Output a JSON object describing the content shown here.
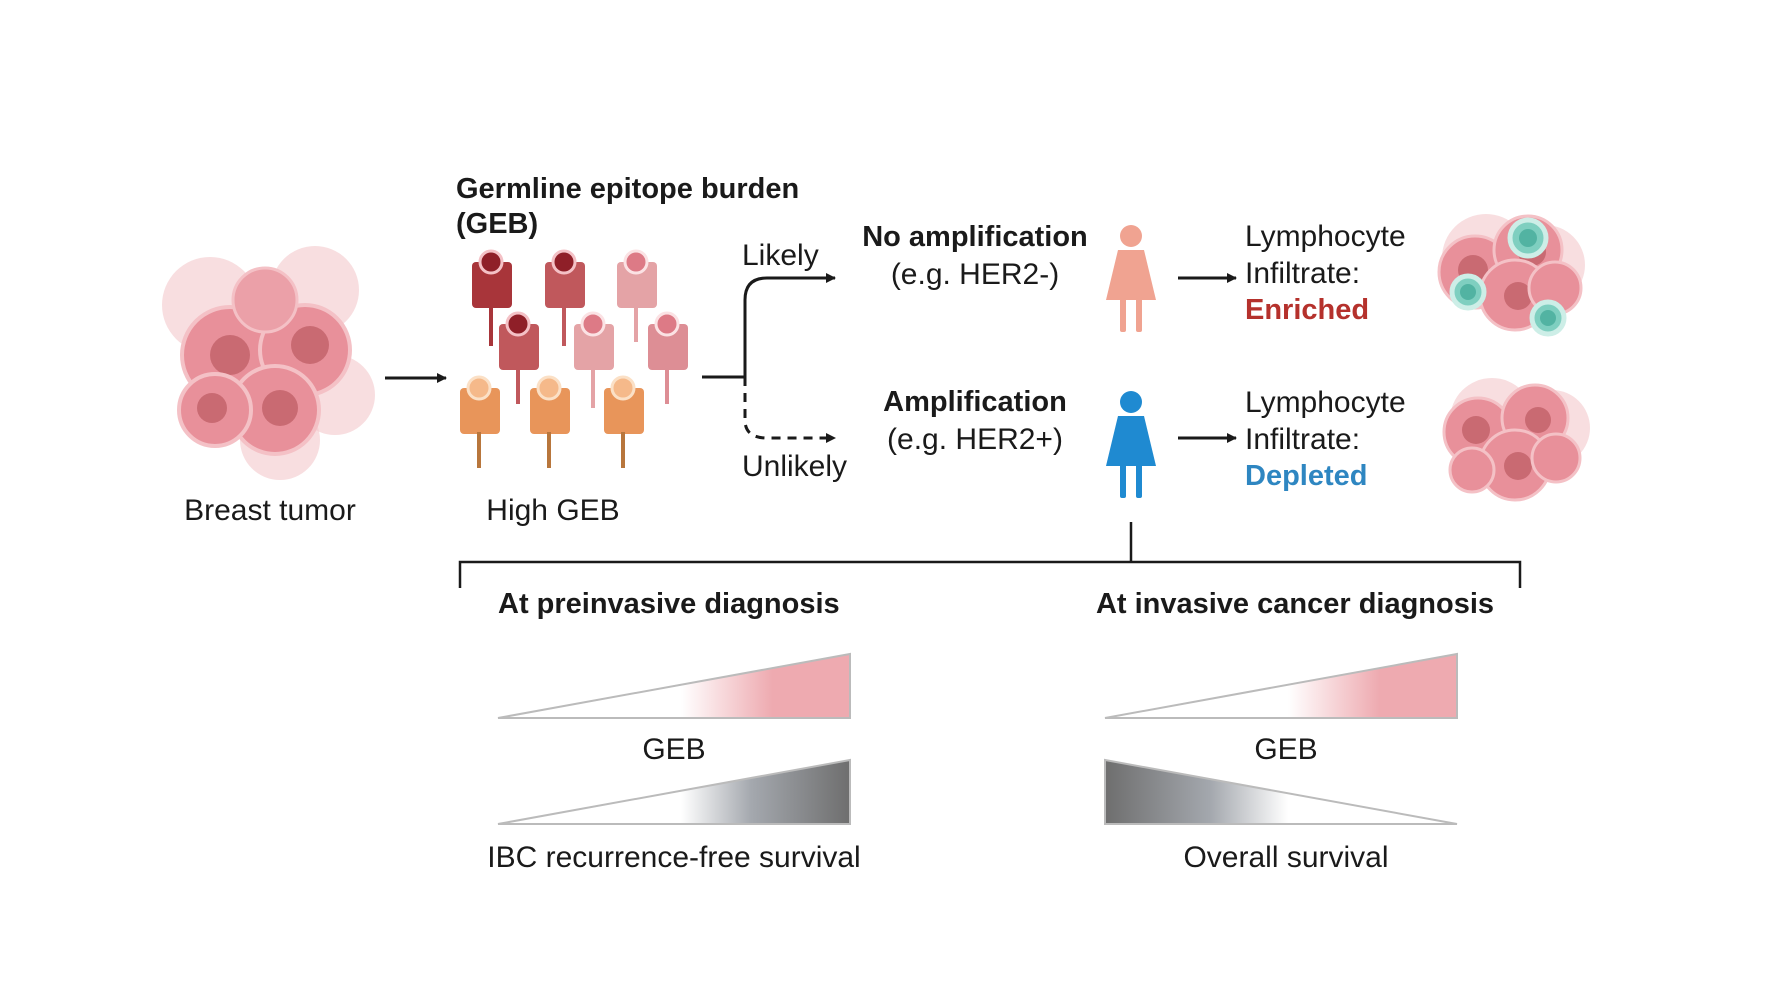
{
  "tumor_label": "Breast tumor",
  "geb_title_line1": "Germline epitope burden",
  "geb_title_line2": "(GEB)",
  "high_geb_label": "High GEB",
  "path_likely_label": "Likely",
  "path_unlikely_label": "Unlikely",
  "outcome_top": {
    "title": "No amplification",
    "subtitle": "(e.g. HER2-)",
    "result_line1": "Lymphocyte",
    "result_line2": "Infiltrate:",
    "result_status": "Enriched",
    "status_color": "#b5312c",
    "figure_color": "#f0a391"
  },
  "outcome_bottom": {
    "title": "Amplification",
    "subtitle": "(e.g. HER2+)",
    "result_line1": "Lymphocyte",
    "result_line2": "Infiltrate:",
    "result_status": "Depleted",
    "status_color": "#2e86c1",
    "figure_color": "#1f8ad1"
  },
  "panel_left": {
    "heading": "At preinvasive diagnosis",
    "wedge1_label": "GEB",
    "wedge2_label": "IBC recurrence-free survival"
  },
  "panel_right": {
    "heading": "At invasive cancer diagnosis",
    "wedge1_label": "GEB",
    "wedge2_label": "Overall survival"
  },
  "colors": {
    "tumor_cell": "#e8909a",
    "receptor_dark": "#a8353a",
    "receptor_mid": "#c96a6e",
    "receptor_light": "#e4a3a6",
    "receptor_orange": "#e8955a",
    "lymphocyte": "#7fcfc0",
    "wedge_pink": "#eeaab0",
    "wedge_gray": "#777777"
  }
}
